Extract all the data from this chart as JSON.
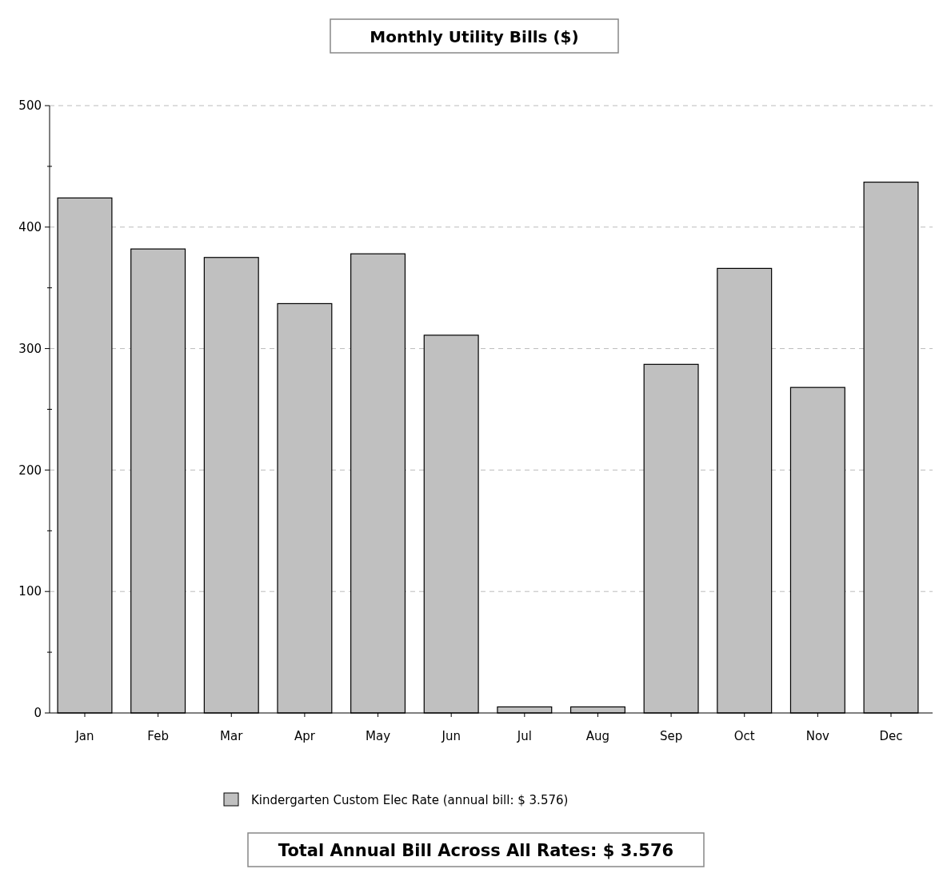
{
  "chart_data": {
    "type": "bar",
    "title": "Monthly Utility Bills ($)",
    "categories": [
      "Jan",
      "Feb",
      "Mar",
      "Apr",
      "May",
      "Jun",
      "Jul",
      "Aug",
      "Sep",
      "Oct",
      "Nov",
      "Dec"
    ],
    "series": [
      {
        "name": "Kindergarten Custom Elec Rate (annual bill: $ 3.576)",
        "color": "#c0c0c0",
        "values": [
          424,
          382,
          375,
          337,
          378,
          311,
          5,
          5,
          287,
          366,
          268,
          437
        ]
      }
    ],
    "ylim": [
      0,
      500
    ],
    "yticks": [
      0,
      {
        "value": 50,
        "label": null
      },
      100,
      {
        "value": 150,
        "label": null
      },
      200,
      {
        "value": 250,
        "label": null
      },
      300,
      {
        "value": 350,
        "label": null
      },
      400,
      {
        "value": 450,
        "label": null
      },
      500
    ],
    "grid": "y",
    "legend": "bottom",
    "annotations": [
      "Total Annual Bill Across All Rates:  $ 3.576"
    ]
  }
}
